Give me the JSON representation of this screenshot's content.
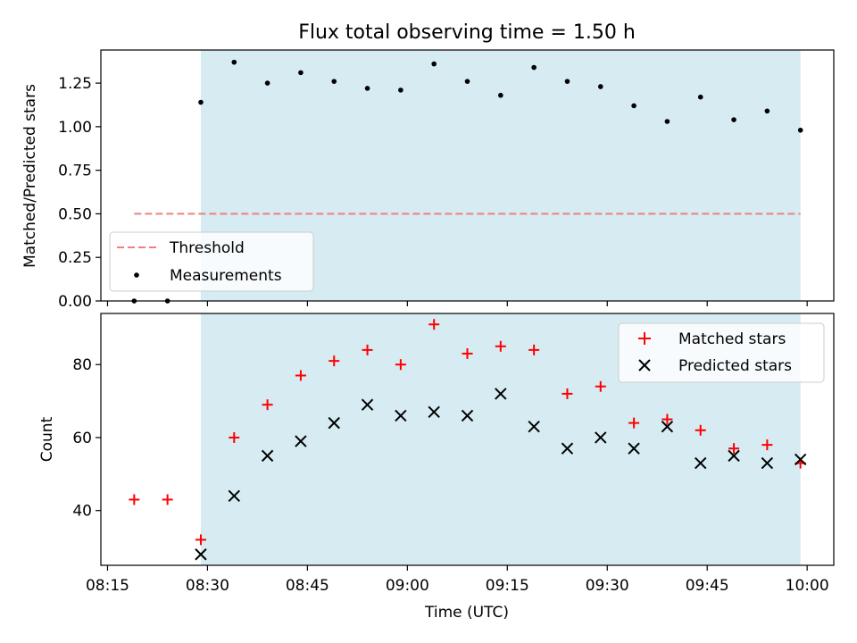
{
  "figure": {
    "title": "Flux total observing time = 1.50 h",
    "xlabel": "Time (UTC)",
    "x_ticks": [
      "08:15",
      "08:30",
      "08:45",
      "09:00",
      "09:15",
      "09:30",
      "09:45",
      "10:00"
    ],
    "x_tick_minutes": [
      495,
      510,
      525,
      540,
      555,
      570,
      585,
      600
    ],
    "xlim_minutes": [
      494,
      604
    ]
  },
  "chart_data": [
    {
      "type": "scatter",
      "panel": "top",
      "ylabel": "Matched/Predicted stars",
      "ylim": [
        0,
        1.44
      ],
      "y_ticks": [
        0.0,
        0.25,
        0.5,
        0.75,
        1.0,
        1.25
      ],
      "y_tick_labels": [
        "0.00",
        "0.25",
        "0.50",
        "0.75",
        "1.00",
        "1.25"
      ],
      "shaded_region_minutes": [
        509,
        599
      ],
      "shade_color": "#add8e6",
      "threshold": {
        "name": "Threshold",
        "value": 0.5,
        "x_range_minutes": [
          499,
          599
        ],
        "color": "#f08080"
      },
      "measurements": {
        "name": "Measurements",
        "color": "#000000",
        "x_minutes": [
          499,
          504,
          509,
          514,
          519,
          524,
          529,
          534,
          539,
          544,
          549,
          554,
          559,
          564,
          569,
          574,
          579,
          584,
          589,
          594,
          599
        ],
        "values": [
          0.0,
          0.0,
          1.14,
          1.37,
          1.25,
          1.31,
          1.26,
          1.22,
          1.21,
          1.36,
          1.26,
          1.18,
          1.34,
          1.26,
          1.23,
          1.12,
          1.03,
          1.17,
          1.04,
          1.09,
          0.98
        ]
      },
      "legend": {
        "placement": "lower-left",
        "entries": [
          "Threshold",
          "Measurements"
        ]
      }
    },
    {
      "type": "scatter",
      "panel": "bottom",
      "ylabel": "Count",
      "ylim": [
        25,
        94
      ],
      "y_ticks": [
        40,
        60,
        80
      ],
      "y_tick_labels": [
        "40",
        "60",
        "80"
      ],
      "shaded_region_minutes": [
        509,
        599
      ],
      "series": [
        {
          "name": "Matched stars",
          "marker": "plus",
          "color": "#ff0000",
          "x_minutes": [
            499,
            504,
            509,
            514,
            519,
            524,
            529,
            534,
            539,
            544,
            549,
            554,
            559,
            564,
            569,
            574,
            579,
            584,
            589,
            594,
            599
          ],
          "values": [
            43,
            43,
            32,
            60,
            69,
            77,
            81,
            84,
            80,
            91,
            83,
            85,
            84,
            72,
            74,
            64,
            65,
            62,
            57,
            58,
            53
          ]
        },
        {
          "name": "Predicted stars",
          "marker": "x",
          "color": "#000000",
          "x_minutes": [
            509,
            514,
            519,
            524,
            529,
            534,
            539,
            544,
            549,
            554,
            559,
            564,
            569,
            574,
            579,
            584,
            589,
            594,
            599
          ],
          "values": [
            28,
            44,
            55,
            59,
            64,
            69,
            66,
            67,
            66,
            72,
            63,
            57,
            60,
            57,
            63,
            53,
            55,
            53,
            54
          ]
        }
      ],
      "legend": {
        "placement": "top-right",
        "entries": [
          "Matched stars",
          "Predicted stars"
        ]
      }
    }
  ]
}
